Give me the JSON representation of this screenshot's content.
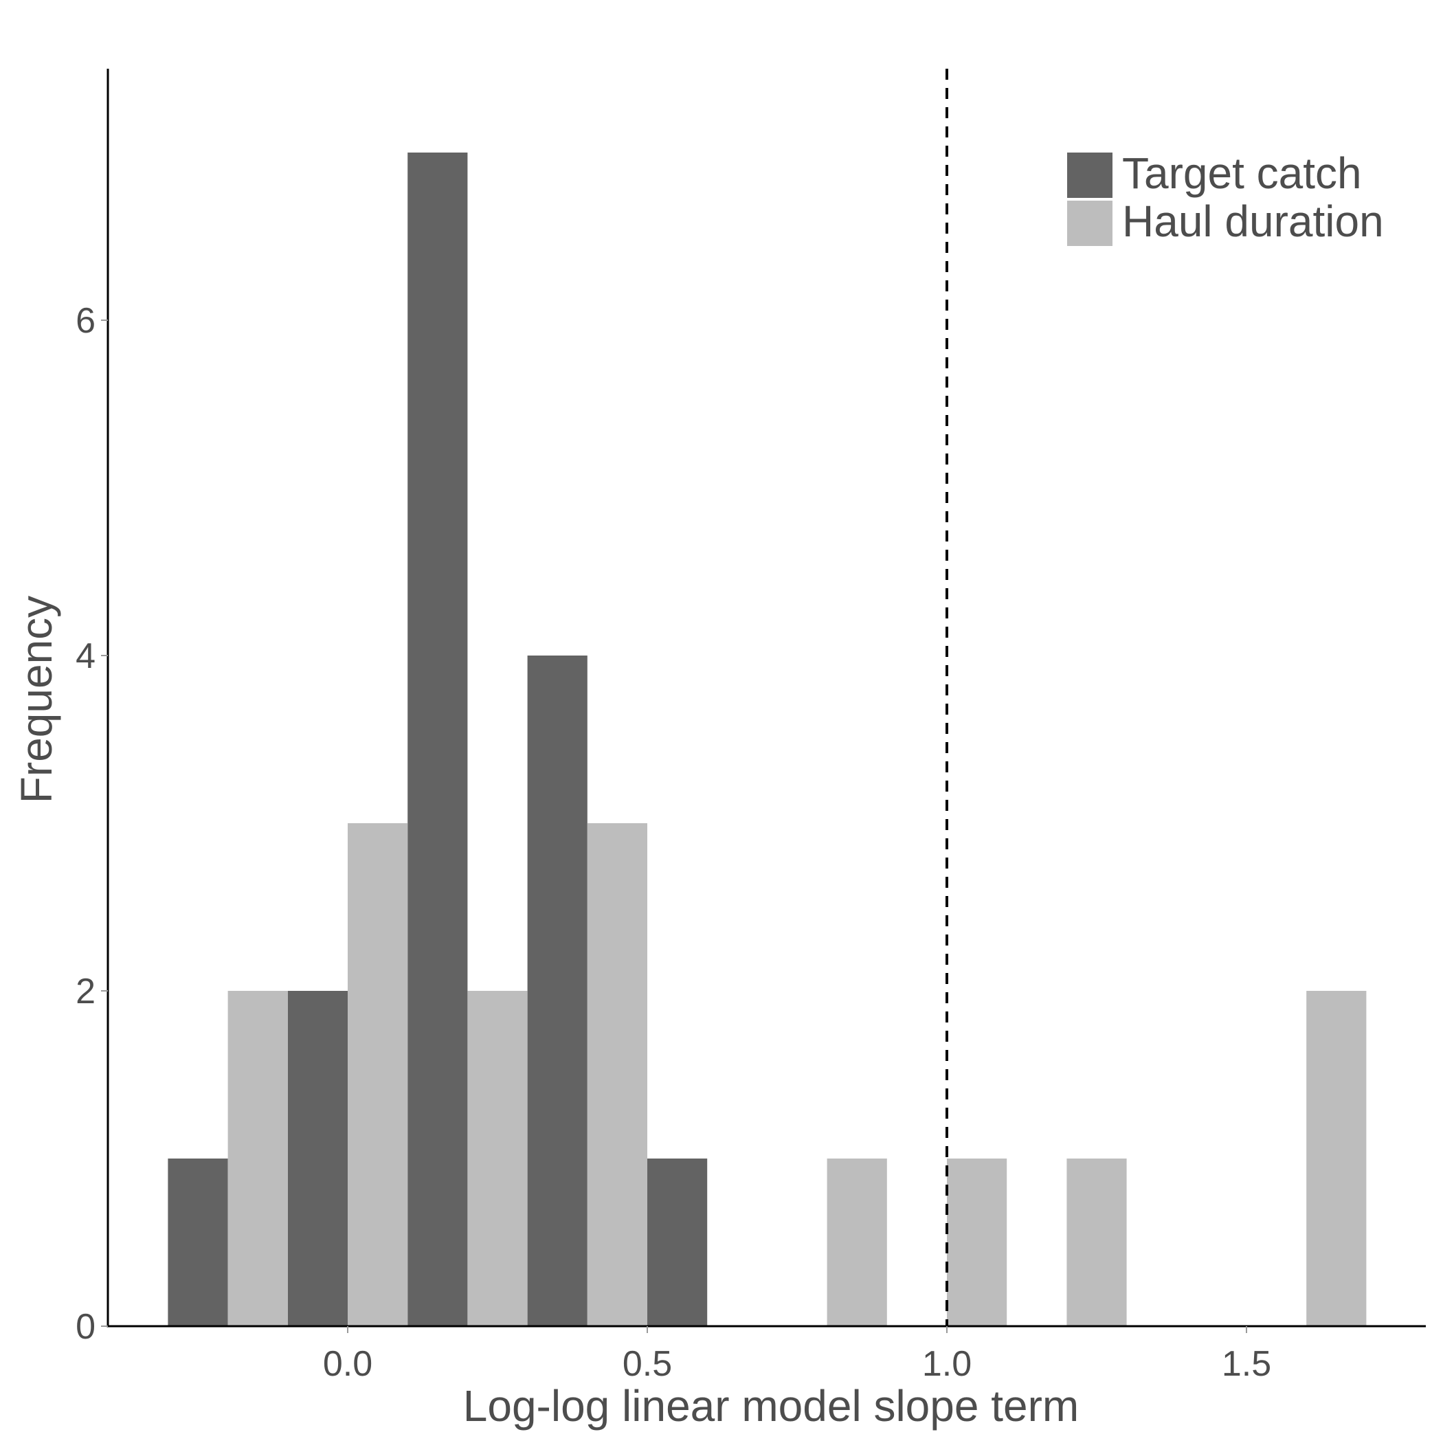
{
  "chart_data": {
    "type": "bar",
    "xlabel": "Log-log linear model slope term",
    "ylabel": "Frequency",
    "xlim": [
      -0.4,
      1.8
    ],
    "ylim": [
      0,
      7.5
    ],
    "x_ticks": [
      0.0,
      0.5,
      1.0,
      1.5
    ],
    "x_tick_labels": [
      "0.0",
      "0.5",
      "1.0",
      "1.5"
    ],
    "y_ticks": [
      0,
      2,
      4,
      6
    ],
    "y_tick_labels": [
      "0",
      "2",
      "4",
      "6"
    ],
    "bin_width": 0.1,
    "reference_line": {
      "x": 1.0,
      "style": "dashed"
    },
    "grid": false,
    "legend_position": "top-right",
    "series": [
      {
        "name": "Target catch",
        "color": "#636363",
        "bins": [
          {
            "x_start": -0.3,
            "x_end": -0.2,
            "count": 1
          },
          {
            "x_start": -0.1,
            "x_end": 0.0,
            "count": 2
          },
          {
            "x_start": 0.1,
            "x_end": 0.2,
            "count": 7
          },
          {
            "x_start": 0.3,
            "x_end": 0.4,
            "count": 4
          },
          {
            "x_start": 0.5,
            "x_end": 0.6,
            "count": 1
          }
        ]
      },
      {
        "name": "Haul duration",
        "color": "#bdbdbd",
        "bins": [
          {
            "x_start": -0.2,
            "x_end": -0.1,
            "count": 2
          },
          {
            "x_start": 0.0,
            "x_end": 0.1,
            "count": 3
          },
          {
            "x_start": 0.2,
            "x_end": 0.3,
            "count": 2
          },
          {
            "x_start": 0.4,
            "x_end": 0.5,
            "count": 3
          },
          {
            "x_start": 0.8,
            "x_end": 0.9,
            "count": 1
          },
          {
            "x_start": 1.0,
            "x_end": 1.1,
            "count": 1
          },
          {
            "x_start": 1.2,
            "x_end": 1.3,
            "count": 1
          },
          {
            "x_start": 1.6,
            "x_end": 1.7,
            "count": 2
          }
        ]
      }
    ]
  }
}
